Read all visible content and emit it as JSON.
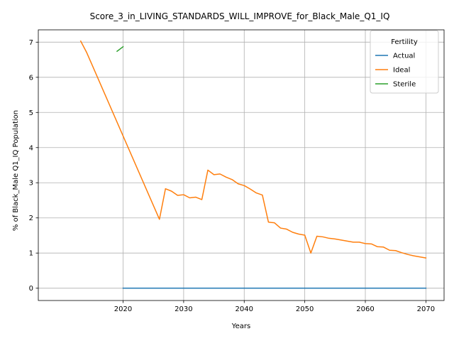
{
  "chart_data": {
    "type": "line",
    "title": "Score_3_in_LIVING_STANDARDS_WILL_IMPROVE_for_Black_Male_Q1_IQ",
    "xlabel": "Years",
    "ylabel": "% of Black_Male Q1_IQ Population",
    "xlim": [
      2006,
      2073
    ],
    "ylim": [
      -0.35,
      7.35
    ],
    "x_ticks": [
      2020,
      2030,
      2040,
      2050,
      2060,
      2070
    ],
    "y_ticks": [
      0,
      1,
      2,
      3,
      4,
      5,
      6,
      7
    ],
    "grid": true,
    "legend": {
      "title": "Fertility",
      "placement": "top-right"
    },
    "series": [
      {
        "name": "Actual",
        "color": "#1f77b4",
        "points": [
          [
            2020,
            0
          ],
          [
            2030,
            0
          ],
          [
            2040,
            0
          ],
          [
            2050,
            0
          ],
          [
            2060,
            0
          ],
          [
            2070,
            0
          ]
        ]
      },
      {
        "name": "Ideal",
        "color": "#ff7f0e",
        "points": [
          [
            2013,
            7.03
          ],
          [
            2014,
            6.7
          ],
          [
            2026,
            1.96
          ],
          [
            2027,
            2.83
          ],
          [
            2028,
            2.76
          ],
          [
            2029,
            2.64
          ],
          [
            2030,
            2.66
          ],
          [
            2031,
            2.57
          ],
          [
            2032,
            2.59
          ],
          [
            2033,
            2.52
          ],
          [
            2034,
            3.36
          ],
          [
            2035,
            3.23
          ],
          [
            2036,
            3.25
          ],
          [
            2037,
            3.16
          ],
          [
            2038,
            3.09
          ],
          [
            2039,
            2.97
          ],
          [
            2040,
            2.92
          ],
          [
            2041,
            2.82
          ],
          [
            2042,
            2.71
          ],
          [
            2043,
            2.65
          ],
          [
            2044,
            1.88
          ],
          [
            2045,
            1.86
          ],
          [
            2046,
            1.71
          ],
          [
            2047,
            1.68
          ],
          [
            2048,
            1.59
          ],
          [
            2049,
            1.54
          ],
          [
            2050,
            1.51
          ],
          [
            2051,
            1.0
          ],
          [
            2052,
            1.48
          ],
          [
            2053,
            1.46
          ],
          [
            2054,
            1.42
          ],
          [
            2055,
            1.4
          ],
          [
            2056,
            1.37
          ],
          [
            2057,
            1.34
          ],
          [
            2058,
            1.31
          ],
          [
            2059,
            1.31
          ],
          [
            2060,
            1.27
          ],
          [
            2061,
            1.26
          ],
          [
            2062,
            1.18
          ],
          [
            2063,
            1.17
          ],
          [
            2064,
            1.08
          ],
          [
            2065,
            1.07
          ],
          [
            2066,
            1.01
          ],
          [
            2067,
            0.96
          ],
          [
            2068,
            0.92
          ],
          [
            2069,
            0.89
          ],
          [
            2070,
            0.86
          ]
        ]
      },
      {
        "name": "Sterile",
        "color": "#2ca02c",
        "points": [
          [
            2019,
            6.74
          ],
          [
            2020,
            6.87
          ]
        ]
      }
    ]
  }
}
